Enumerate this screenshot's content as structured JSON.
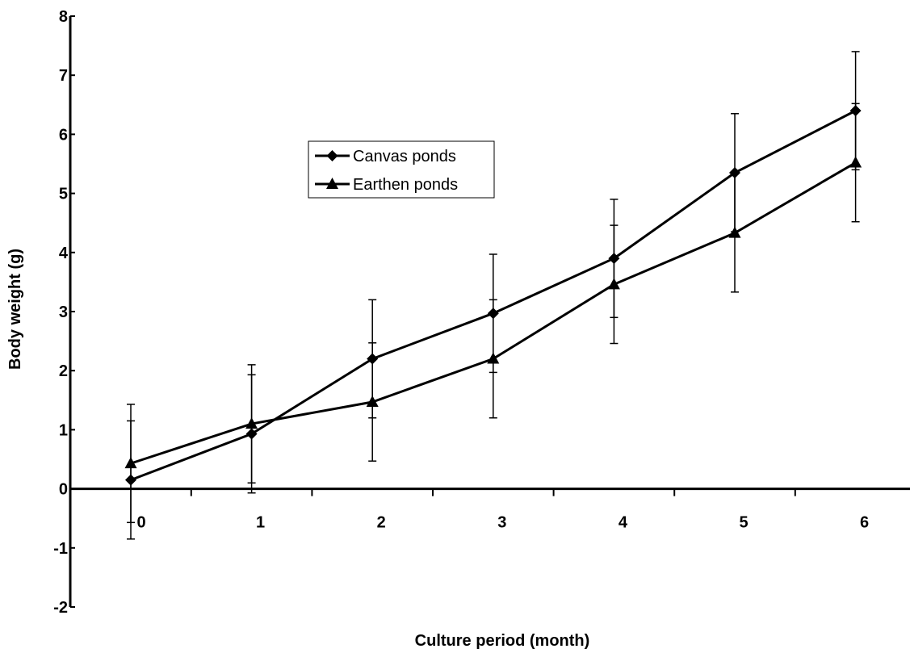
{
  "chart_data": {
    "type": "line",
    "xlabel": "Culture period (month)",
    "ylabel": "Body weight (g)",
    "ylim": [
      -2,
      8
    ],
    "y_ticks": [
      -2,
      -1,
      0,
      1,
      2,
      3,
      4,
      5,
      6,
      7,
      8
    ],
    "y_tick_labels": [
      "-2",
      "-1",
      "0",
      "1",
      "2",
      "3",
      "4",
      "5",
      "6",
      "7",
      "8"
    ],
    "x_ticks": [
      0,
      1,
      2,
      3,
      4,
      5,
      6
    ],
    "x_tick_labels": [
      "0",
      "1",
      "2",
      "3",
      "4",
      "5",
      "6"
    ],
    "grid": false,
    "legend_position": "upper-center",
    "series": [
      {
        "name": "Canvas ponds",
        "marker": "diamond",
        "color": "#000000",
        "x": [
          0,
          1,
          2,
          3,
          4,
          5,
          6
        ],
        "y": [
          0.15,
          0.93,
          2.2,
          2.97,
          3.9,
          5.35,
          6.4
        ],
        "err_low": [
          1.0,
          1.0,
          1.0,
          1.0,
          1.0,
          1.0,
          1.0
        ],
        "err_high": [
          1.0,
          1.0,
          1.0,
          1.0,
          1.0,
          1.0,
          1.0
        ]
      },
      {
        "name": "Earthen ponds",
        "marker": "triangle",
        "color": "#000000",
        "x": [
          0,
          1,
          2,
          3,
          4,
          5,
          6
        ],
        "y": [
          0.43,
          1.1,
          1.47,
          2.2,
          3.46,
          4.33,
          5.52
        ],
        "err_low": [
          1.0,
          1.0,
          1.0,
          1.0,
          1.0,
          1.0,
          1.0
        ],
        "err_high": [
          1.0,
          1.0,
          1.0,
          1.0,
          1.0,
          1.0,
          1.0
        ]
      }
    ]
  }
}
